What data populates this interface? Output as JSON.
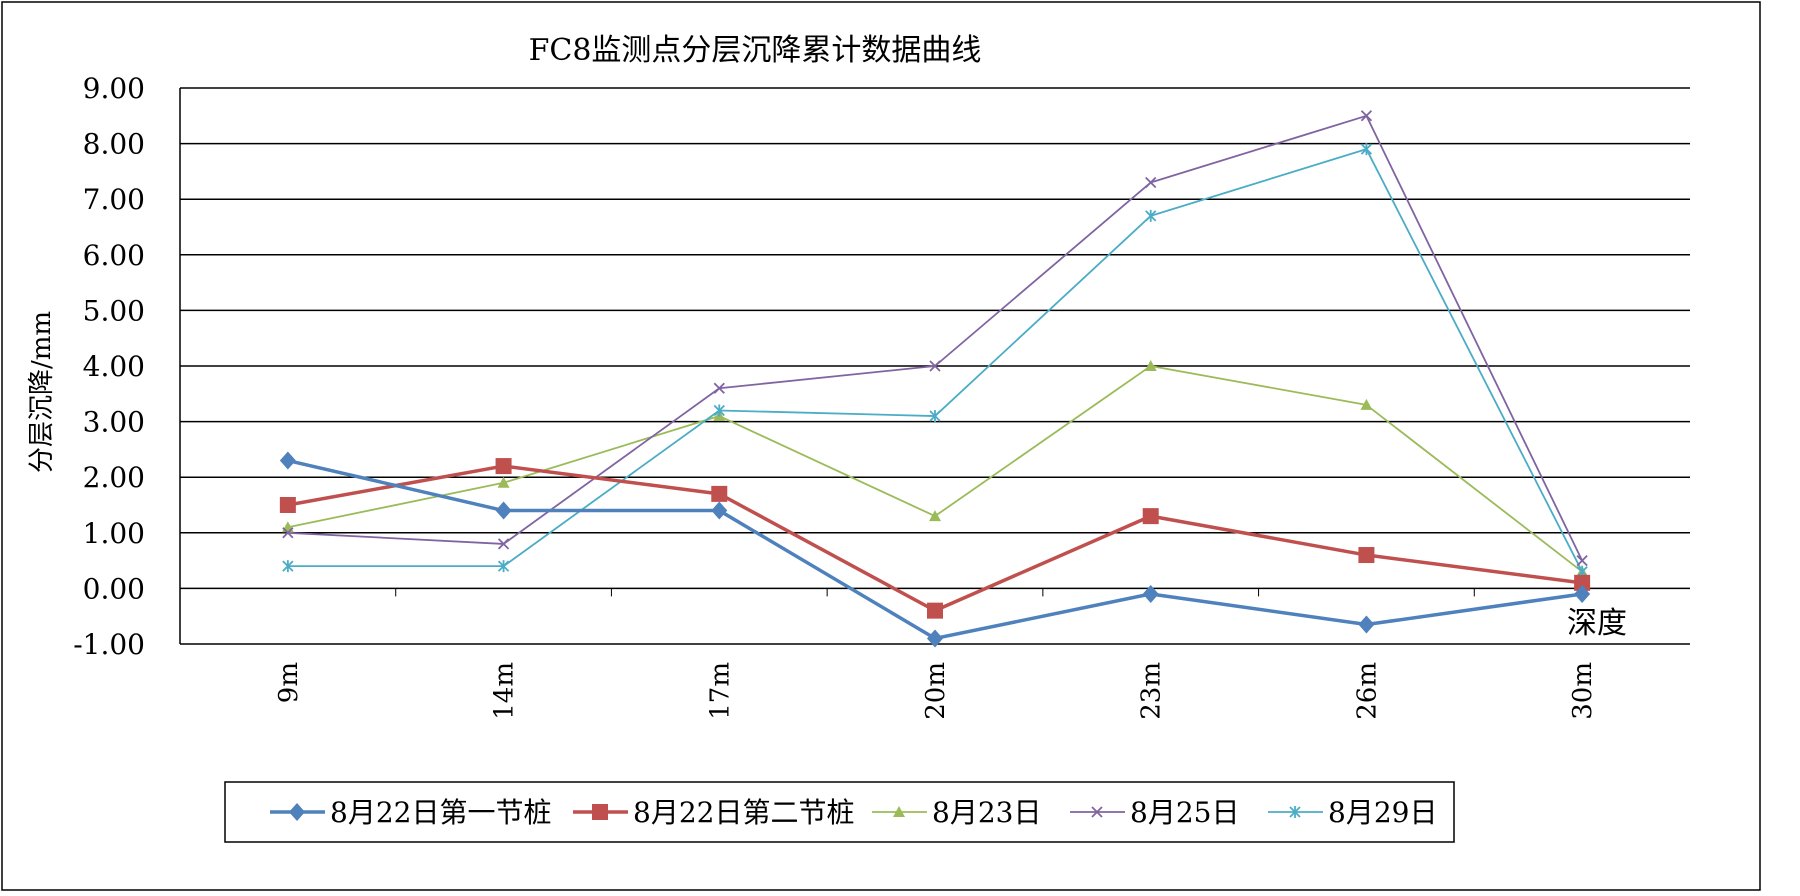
{
  "chart_data": {
    "type": "line",
    "title": "FC8监测点分层沉降累计数据曲线",
    "xlabel": "深度",
    "ylabel": "分层沉降/mm",
    "categories": [
      "9m",
      "14m",
      "17m",
      "20m",
      "23m",
      "26m",
      "30m"
    ],
    "ylim": [
      -1,
      9
    ],
    "yticks": [
      "9.00",
      "8.00",
      "7.00",
      "6.00",
      "5.00",
      "4.00",
      "3.00",
      "2.00",
      "1.00",
      "0.00",
      "-1.00"
    ],
    "grid": true,
    "legend_position": "bottom",
    "series": [
      {
        "name": "8月22日第一节桩",
        "color": "#4f81bd",
        "marker": "diamond",
        "values": [
          2.3,
          1.4,
          1.4,
          -0.9,
          -0.1,
          -0.65,
          -0.1
        ]
      },
      {
        "name": "8月22日第二节桩",
        "color": "#c0504d",
        "marker": "square",
        "values": [
          1.5,
          2.2,
          1.7,
          -0.4,
          1.3,
          0.6,
          0.1
        ]
      },
      {
        "name": "8月23日",
        "color": "#9bbb59",
        "marker": "triangle",
        "values": [
          1.1,
          1.9,
          3.1,
          1.3,
          4.0,
          3.3,
          0.3
        ]
      },
      {
        "name": "8月25日",
        "color": "#8064a2",
        "marker": "x",
        "values": [
          1.0,
          0.8,
          3.6,
          4.0,
          7.3,
          8.5,
          0.5
        ]
      },
      {
        "name": "8月29日",
        "color": "#4bacc6",
        "marker": "star",
        "values": [
          0.4,
          0.4,
          3.2,
          3.1,
          6.7,
          7.9,
          0.3
        ]
      }
    ]
  }
}
